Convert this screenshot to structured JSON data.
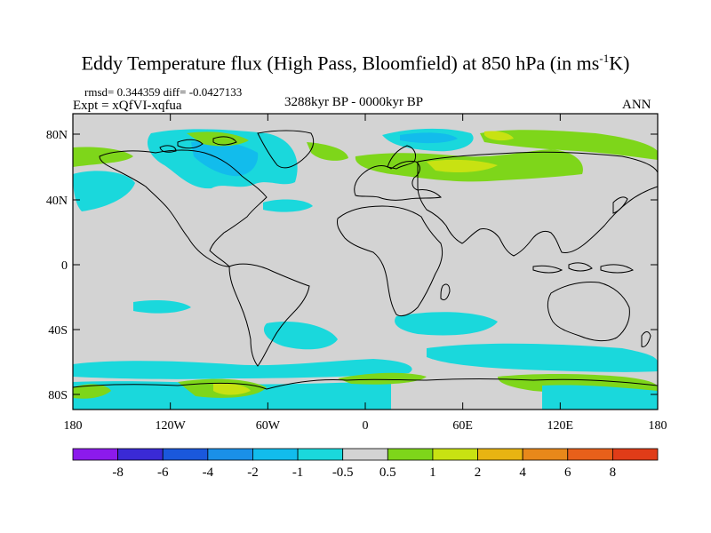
{
  "title": {
    "main": "Eddy Temperature flux (High Pass, Bloomfield) at 850 hPa (in ms",
    "sup": "-1",
    "tail": "K)"
  },
  "stats": {
    "rmsd": "rmsd= 0.344359 diff= -0.0427133",
    "experiment": "Expt = xQfVI-xqfua",
    "period": "3288kyr BP - 0000kyr BP",
    "season": "ANN"
  },
  "axes": {
    "lat_labels": [
      "80N",
      "40N",
      "0",
      "40S",
      "80S"
    ],
    "lon_labels": [
      "180",
      "120W",
      "60W",
      "0",
      "60E",
      "120E",
      "180"
    ]
  },
  "colorbar": {
    "labels": [
      "-8",
      "-6",
      "-4",
      "-2",
      "-1",
      "-0.5",
      "0.5",
      "1",
      "2",
      "4",
      "6",
      "8"
    ],
    "colors": [
      "#8c1aec",
      "#3a2ad6",
      "#1a58dc",
      "#1a90e8",
      "#12bcec",
      "#1ad8dc",
      "#d3d3d3",
      "#7ed61a",
      "#c8e212",
      "#e8b412",
      "#e8881a",
      "#e8601a",
      "#e03c18"
    ]
  },
  "colors": {
    "land_fill": "#d3d3d3",
    "coast": "#000000",
    "neg_light": "#1ad8dc",
    "neg_mid": "#12bcec",
    "neg_strong": "#1a90e8",
    "pos_light": "#7ed61a",
    "pos_mid": "#c8e212"
  }
}
